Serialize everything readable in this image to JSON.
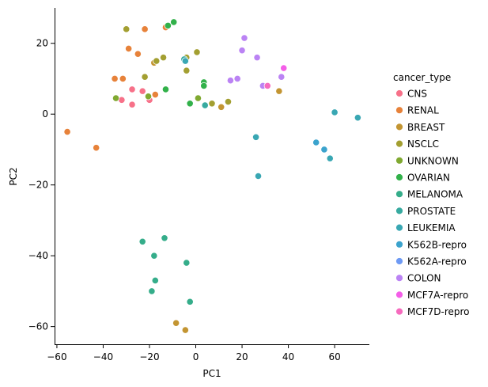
{
  "chart_data": {
    "type": "scatter",
    "title": "",
    "xlabel": "PC1",
    "ylabel": "PC2",
    "xlim": [
      -61,
      75
    ],
    "ylim": [
      -65,
      30
    ],
    "xticks": [
      -60,
      -40,
      -20,
      0,
      20,
      40,
      60
    ],
    "yticks": [
      -60,
      -40,
      -20,
      0,
      20
    ],
    "grid": false,
    "legend": {
      "title": "cancer_type",
      "placement": "right"
    },
    "series": [
      {
        "name": "CNS",
        "color": "#f77189",
        "points": [
          [
            -27.5,
            7
          ],
          [
            -23,
            6.5
          ],
          [
            -32,
            4
          ],
          [
            -20,
            4
          ],
          [
            -27.5,
            2.7
          ]
        ]
      },
      {
        "name": "RENAL",
        "color": "#e7823a",
        "points": [
          [
            -55.5,
            -5
          ],
          [
            -43,
            -9.5
          ],
          [
            -35,
            10
          ],
          [
            -31.5,
            10
          ],
          [
            -29,
            18.5
          ],
          [
            -25,
            17
          ],
          [
            -22,
            24
          ],
          [
            -17.5,
            5.5
          ],
          [
            -13,
            24.5
          ]
        ]
      },
      {
        "name": "BREAST",
        "color": "#c39532",
        "points": [
          [
            -18,
            14.5
          ],
          [
            -8.5,
            -59
          ],
          [
            -4.5,
            -61
          ],
          [
            11,
            2
          ],
          [
            36,
            6.5
          ]
        ]
      },
      {
        "name": "NSCLC",
        "color": "#a39f31",
        "points": [
          [
            -30,
            24
          ],
          [
            -22,
            10.5
          ],
          [
            -17,
            15
          ],
          [
            -14,
            16
          ],
          [
            -4,
            16
          ],
          [
            0.5,
            17.5
          ],
          [
            7,
            3
          ],
          [
            14,
            3.5
          ],
          [
            -4,
            12.3
          ]
        ]
      },
      {
        "name": "UNKNOWN",
        "color": "#80a931",
        "points": [
          [
            -34.5,
            4.5
          ],
          [
            -20.5,
            5
          ],
          [
            1,
            4.5
          ]
        ]
      },
      {
        "name": "OVARIAN",
        "color": "#32b14a",
        "points": [
          [
            -13,
            7
          ],
          [
            -12,
            25
          ],
          [
            -9.5,
            26
          ],
          [
            -2.5,
            3
          ],
          [
            3.5,
            9
          ],
          [
            3.5,
            8
          ]
        ]
      },
      {
        "name": "MELANOMA",
        "color": "#35ad8a",
        "points": [
          [
            -23,
            -36
          ],
          [
            -18,
            -40
          ],
          [
            -13.5,
            -35
          ],
          [
            -4,
            -42
          ],
          [
            -17.5,
            -47
          ],
          [
            -19,
            -50
          ],
          [
            -2.5,
            -53
          ]
        ]
      },
      {
        "name": "PROSTATE",
        "color": "#37aaa0",
        "points": [
          [
            -5,
            15.5
          ],
          [
            4,
            2.5
          ]
        ]
      },
      {
        "name": "LEUKEMIA",
        "color": "#39a7b3",
        "points": [
          [
            -4.5,
            15
          ],
          [
            26,
            -6.5
          ],
          [
            27,
            -17.5
          ],
          [
            60,
            0.5
          ],
          [
            70,
            -1
          ],
          [
            58,
            -12.5
          ]
        ]
      },
      {
        "name": "K562B-repro",
        "color": "#3ba3cd",
        "points": [
          [
            52,
            -8
          ],
          [
            55.5,
            -10
          ]
        ]
      },
      {
        "name": "K562A-repro",
        "color": "#6e9af4",
        "points": []
      },
      {
        "name": "COLON",
        "color": "#bb83f4",
        "points": [
          [
            15,
            9.5
          ],
          [
            18,
            10
          ],
          [
            20,
            18
          ],
          [
            21,
            21.5
          ],
          [
            26.5,
            16
          ],
          [
            29,
            8
          ],
          [
            37,
            10.5
          ]
        ]
      },
      {
        "name": "MCF7A-repro",
        "color": "#f45ee8",
        "points": [
          [
            38,
            13
          ]
        ]
      },
      {
        "name": "MCF7D-repro",
        "color": "#f66bbe",
        "points": [
          [
            31,
            8
          ]
        ]
      }
    ]
  }
}
